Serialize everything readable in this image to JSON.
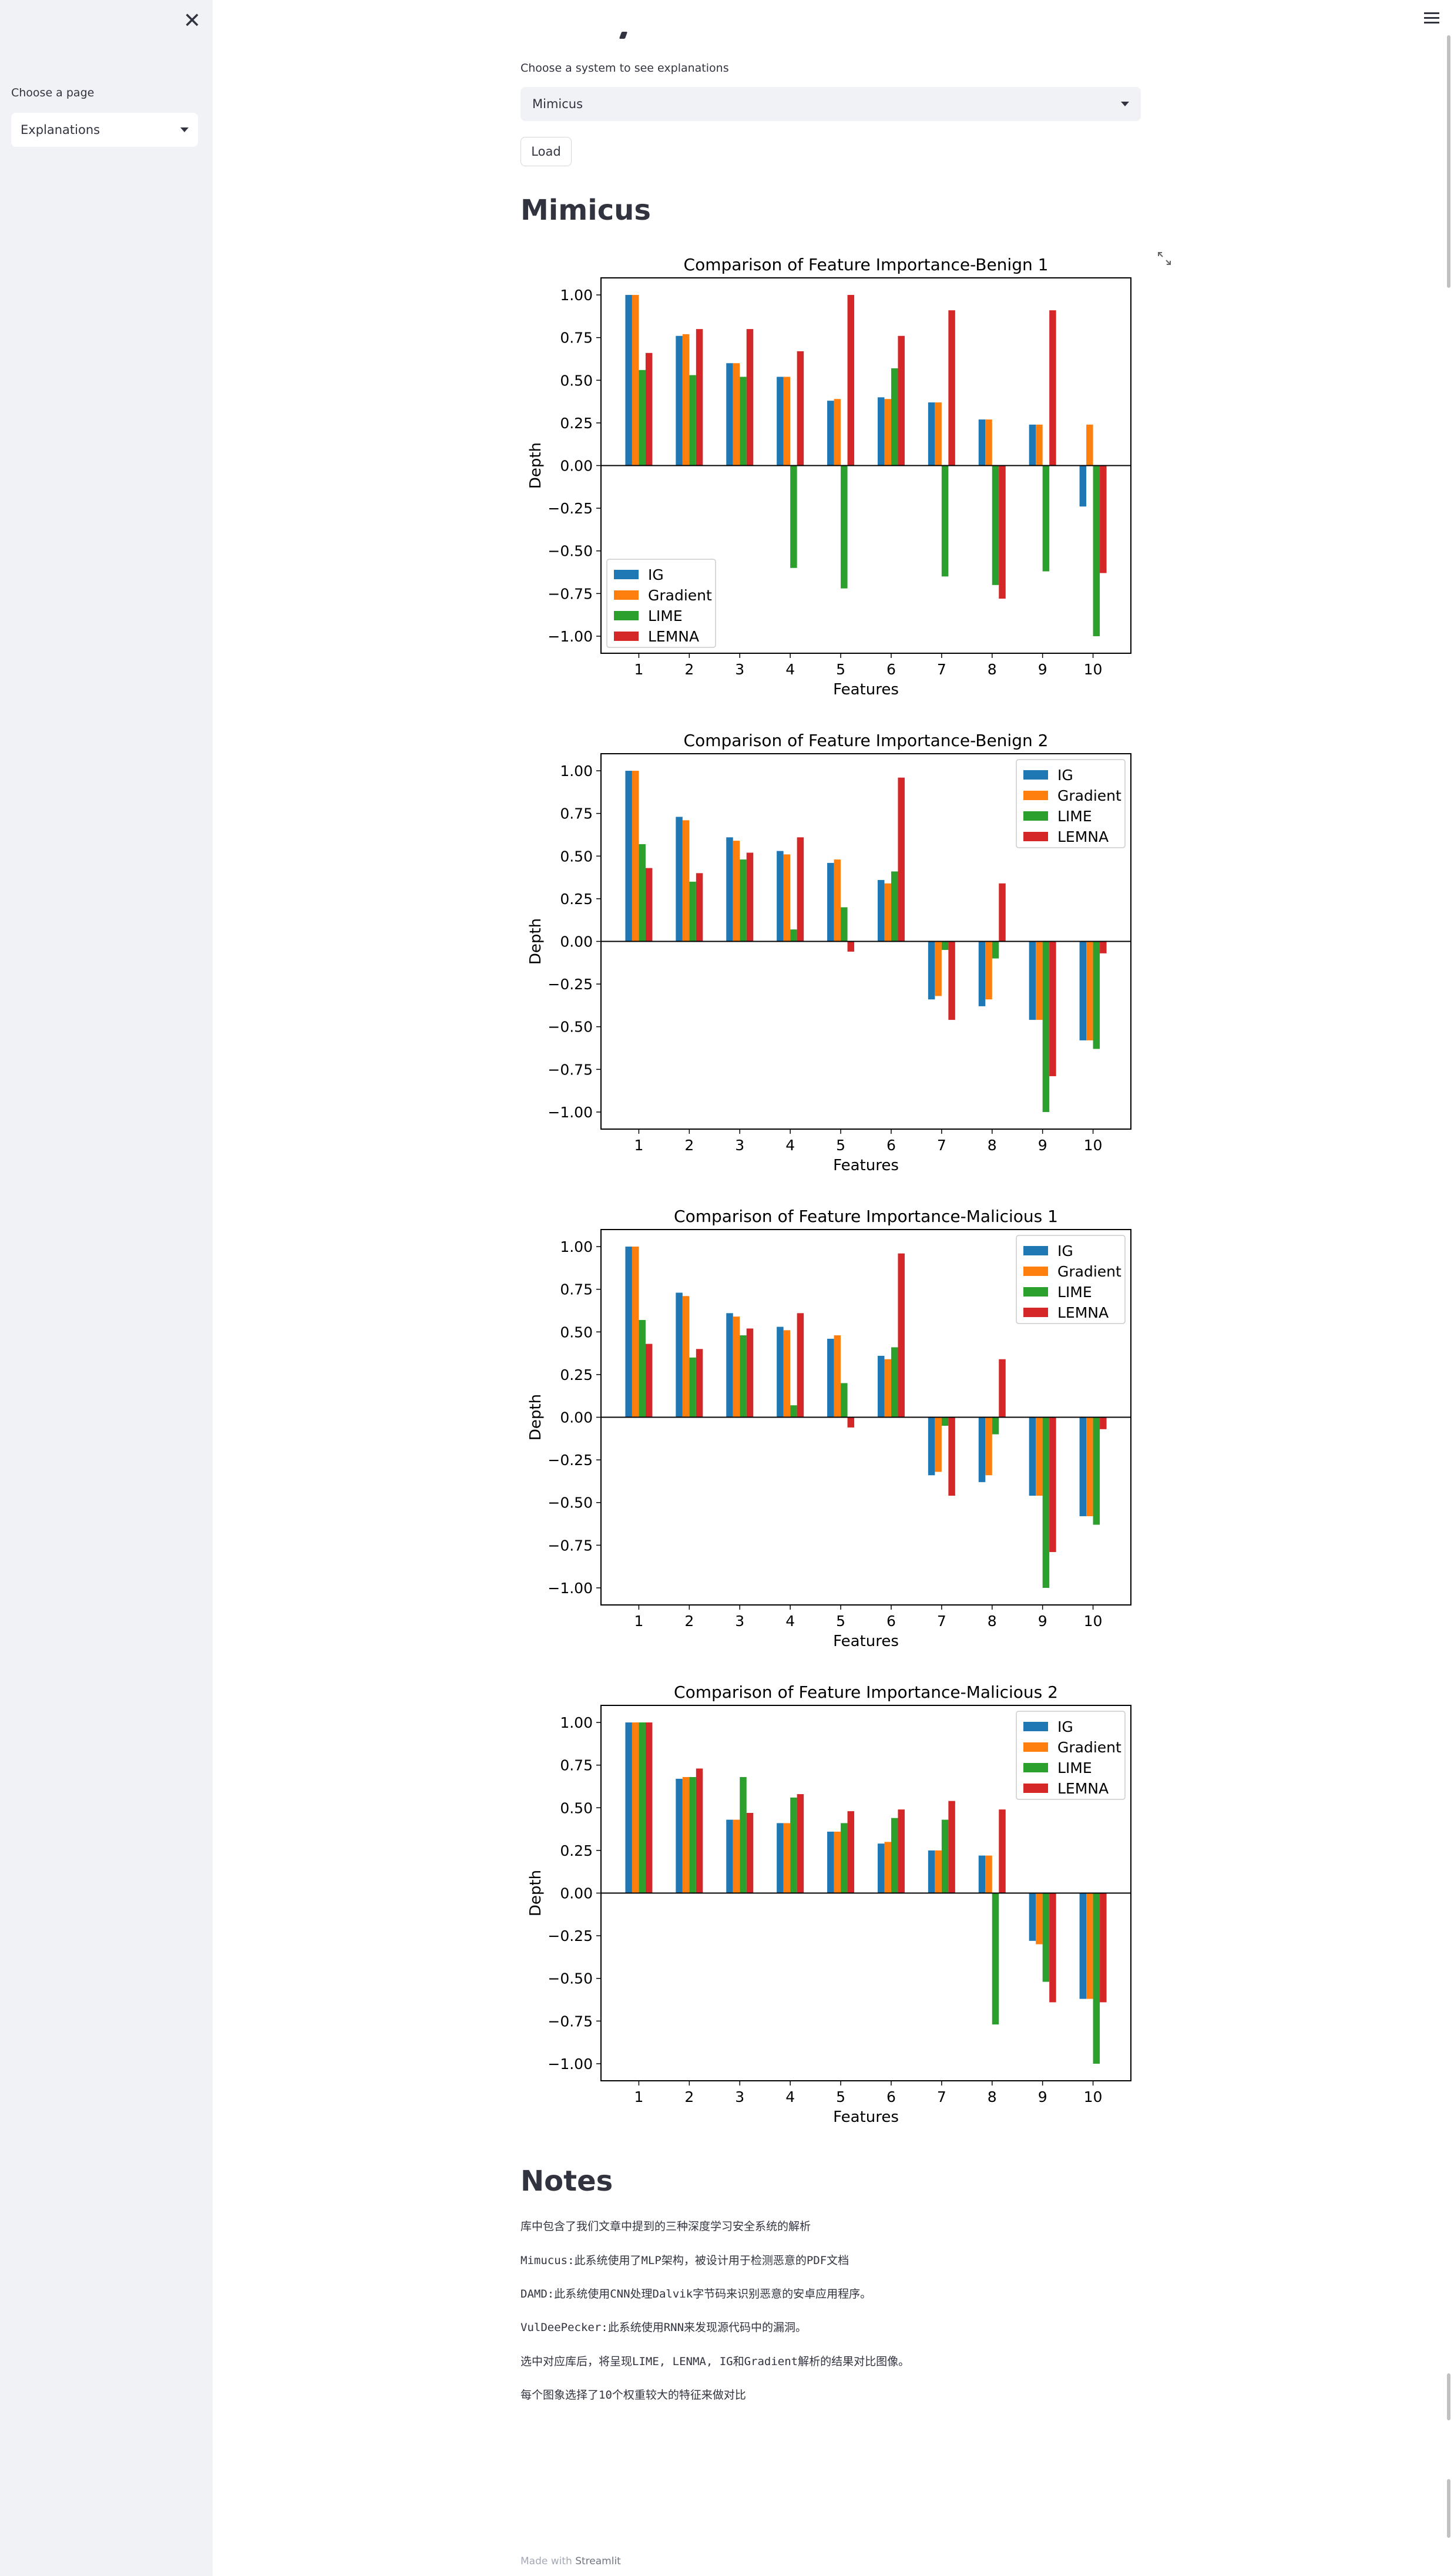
{
  "sidebar": {
    "close_icon": "close-icon",
    "label": "Choose a page",
    "selected": "Explanations"
  },
  "header": {
    "menu_icon": "hamburger-menu-icon"
  },
  "main": {
    "select_label": "Choose a system to see explanations",
    "selected_system": "Mimicus",
    "load_label": "Load",
    "system_title": "Mimicus",
    "expand_icon": "fullscreen-expand-icon",
    "notes_title": "Notes",
    "notes": [
      "库中包含了我们文章中提到的三种深度学习安全系统的解析",
      "Mimucus:此系统使用了MLP架构，被设计用于检测恶意的PDF文档",
      "DAMD:此系统使用CNN处理Dalvik字节码来识别恶意的安卓应用程序。",
      "VulDeePecker:此系统使用RNN来发现源代码中的漏洞。",
      "选中对应库后，将呈现LIME, LENMA, IG和Gradient解析的结果对比图像。",
      "每个图象选择了10个权重较大的特征来做对比"
    ],
    "footer_prefix": "Made with",
    "footer_brand": "Streamlit"
  },
  "colors": {
    "IG": "#1f77b4",
    "Gradient": "#ff7f0e",
    "LIME": "#2ca02c",
    "LEMNA": "#d62728"
  },
  "chart_data": [
    {
      "type": "bar",
      "title": "Comparison of Feature Importance-Benign 1",
      "xlabel": "Features",
      "ylabel": "Depth",
      "ylim": [
        -1.1,
        1.1
      ],
      "legend_position": "lower-left",
      "categories": [
        "1",
        "2",
        "3",
        "4",
        "5",
        "6",
        "7",
        "8",
        "9",
        "10"
      ],
      "series": [
        {
          "name": "IG",
          "values": [
            1.0,
            0.76,
            0.6,
            0.52,
            0.38,
            0.4,
            0.37,
            0.27,
            0.24,
            -0.24
          ]
        },
        {
          "name": "Gradient",
          "values": [
            1.0,
            0.77,
            0.6,
            0.52,
            0.39,
            0.39,
            0.37,
            0.27,
            0.24,
            0.24
          ]
        },
        {
          "name": "LIME",
          "values": [
            0.56,
            0.53,
            0.52,
            -0.6,
            -0.72,
            0.57,
            -0.65,
            -0.7,
            -0.62,
            -1.0
          ]
        },
        {
          "name": "LEMNA",
          "values": [
            0.66,
            0.8,
            0.8,
            0.67,
            1.0,
            0.76,
            0.91,
            -0.78,
            0.91,
            -0.63
          ]
        }
      ]
    },
    {
      "type": "bar",
      "title": "Comparison of Feature Importance-Benign 2",
      "xlabel": "Features",
      "ylabel": "Depth",
      "ylim": [
        -1.1,
        1.1
      ],
      "legend_position": "upper-right",
      "categories": [
        "1",
        "2",
        "3",
        "4",
        "5",
        "6",
        "7",
        "8",
        "9",
        "10"
      ],
      "series": [
        {
          "name": "IG",
          "values": [
            1.0,
            0.73,
            0.61,
            0.53,
            0.46,
            0.36,
            -0.34,
            -0.38,
            -0.46,
            -0.58
          ]
        },
        {
          "name": "Gradient",
          "values": [
            1.0,
            0.71,
            0.59,
            0.51,
            0.48,
            0.34,
            -0.32,
            -0.34,
            -0.46,
            -0.58
          ]
        },
        {
          "name": "LIME",
          "values": [
            0.57,
            0.35,
            0.48,
            0.07,
            0.2,
            0.41,
            -0.05,
            -0.1,
            -1.0,
            -0.63
          ]
        },
        {
          "name": "LEMNA",
          "values": [
            0.43,
            0.4,
            0.52,
            0.61,
            -0.06,
            0.96,
            -0.46,
            0.34,
            -0.79,
            -0.07
          ]
        }
      ]
    },
    {
      "type": "bar",
      "title": "Comparison of Feature Importance-Malicious 1",
      "xlabel": "Features",
      "ylabel": "Depth",
      "ylim": [
        -1.1,
        1.1
      ],
      "legend_position": "upper-right",
      "categories": [
        "1",
        "2",
        "3",
        "4",
        "5",
        "6",
        "7",
        "8",
        "9",
        "10"
      ],
      "series": [
        {
          "name": "IG",
          "values": [
            1.0,
            0.73,
            0.61,
            0.53,
            0.46,
            0.36,
            -0.34,
            -0.38,
            -0.46,
            -0.58
          ]
        },
        {
          "name": "Gradient",
          "values": [
            1.0,
            0.71,
            0.59,
            0.51,
            0.48,
            0.34,
            -0.32,
            -0.34,
            -0.46,
            -0.58
          ]
        },
        {
          "name": "LIME",
          "values": [
            0.57,
            0.35,
            0.48,
            0.07,
            0.2,
            0.41,
            -0.05,
            -0.1,
            -1.0,
            -0.63
          ]
        },
        {
          "name": "LEMNA",
          "values": [
            0.43,
            0.4,
            0.52,
            0.61,
            -0.06,
            0.96,
            -0.46,
            0.34,
            -0.79,
            -0.07
          ]
        }
      ]
    },
    {
      "type": "bar",
      "title": "Comparison of Feature Importance-Malicious 2",
      "xlabel": "Features",
      "ylabel": "Depth",
      "ylim": [
        -1.1,
        1.1
      ],
      "legend_position": "upper-right",
      "categories": [
        "1",
        "2",
        "3",
        "4",
        "5",
        "6",
        "7",
        "8",
        "9",
        "10"
      ],
      "series": [
        {
          "name": "IG",
          "values": [
            1.0,
            0.67,
            0.43,
            0.41,
            0.36,
            0.29,
            0.25,
            0.22,
            -0.28,
            -0.62
          ]
        },
        {
          "name": "Gradient",
          "values": [
            1.0,
            0.68,
            0.43,
            0.41,
            0.36,
            0.3,
            0.25,
            0.22,
            -0.3,
            -0.62
          ]
        },
        {
          "name": "LIME",
          "values": [
            1.0,
            0.68,
            0.68,
            0.56,
            0.41,
            0.44,
            0.43,
            -0.77,
            -0.52,
            -1.0
          ]
        },
        {
          "name": "LEMNA",
          "values": [
            1.0,
            0.73,
            0.47,
            0.58,
            0.48,
            0.49,
            0.54,
            0.49,
            -0.64,
            -0.64
          ]
        }
      ]
    }
  ]
}
